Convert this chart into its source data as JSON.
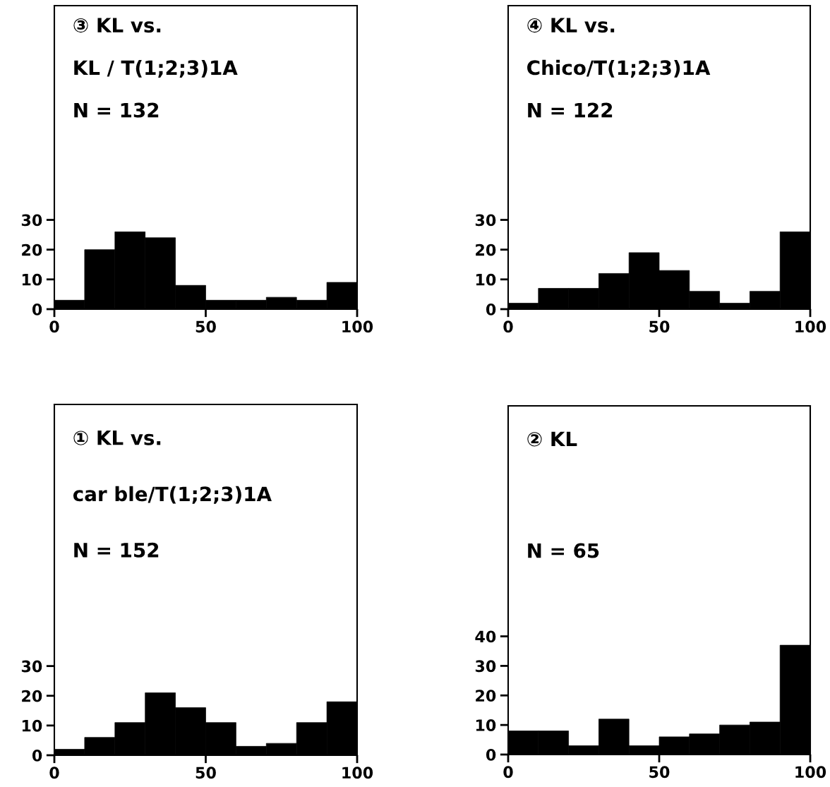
{
  "chart_data": [
    {
      "type": "histogram",
      "annotations": [
        "③ KL vs.",
        "KL / T(1;2;3)1A",
        "N = 132"
      ],
      "bins": [
        0,
        10,
        20,
        30,
        40,
        50,
        60,
        70,
        80,
        90,
        100
      ],
      "values": [
        3,
        20,
        26,
        24,
        8,
        3,
        3,
        4,
        3,
        9
      ],
      "color": "#000000",
      "xlim": [
        0,
        100
      ],
      "xticks": [
        0,
        50,
        100
      ],
      "ylim": [
        0,
        102
      ],
      "yticks": [
        0,
        10,
        20,
        30
      ],
      "grid": false,
      "legend": false
    },
    {
      "type": "histogram",
      "annotations": [
        "④ KL vs.",
        "Chico/T(1;2;3)1A",
        "N = 122"
      ],
      "bins": [
        0,
        10,
        20,
        30,
        40,
        50,
        60,
        70,
        80,
        90,
        100
      ],
      "values": [
        2,
        7,
        7,
        12,
        19,
        13,
        6,
        2,
        6,
        26
      ],
      "color": "#000000",
      "xlim": [
        0,
        100
      ],
      "xticks": [
        0,
        50,
        100
      ],
      "ylim": [
        0,
        102
      ],
      "yticks": [
        0,
        10,
        20,
        30
      ],
      "grid": false,
      "legend": false
    },
    {
      "type": "histogram",
      "annotations": [
        "① KL vs.",
        "car ble/T(1;2;3)1A",
        "N = 152"
      ],
      "bins": [
        0,
        10,
        20,
        30,
        40,
        50,
        60,
        70,
        80,
        90,
        100
      ],
      "values": [
        2,
        6,
        11,
        21,
        16,
        11,
        3,
        4,
        11,
        18
      ],
      "color": "#000000",
      "xlim": [
        0,
        100
      ],
      "xticks": [
        0,
        50,
        100
      ],
      "ylim": [
        0,
        118
      ],
      "yticks": [
        0,
        10,
        20,
        30
      ],
      "grid": false,
      "legend": false
    },
    {
      "type": "histogram",
      "annotations": [
        "② KL",
        "N = 65"
      ],
      "bins": [
        0,
        10,
        20,
        30,
        40,
        50,
        60,
        70,
        80,
        90,
        100
      ],
      "values": [
        8,
        8,
        3,
        12,
        3,
        6,
        7,
        10,
        11,
        37
      ],
      "color": "#000000",
      "xlim": [
        0,
        100
      ],
      "xticks": [
        0,
        50,
        100
      ],
      "ylim": [
        0,
        118
      ],
      "yticks": [
        0,
        10,
        20,
        30,
        40
      ],
      "grid": false,
      "legend": false
    }
  ]
}
